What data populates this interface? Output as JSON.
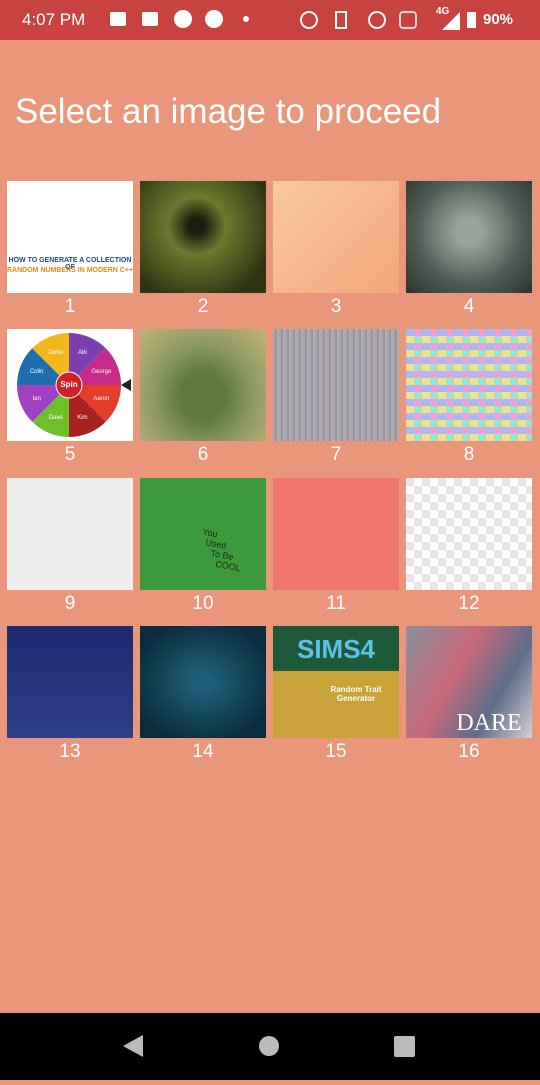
{
  "status_bar": {
    "time": "4:07 PM",
    "network": "4G",
    "battery": "90%"
  },
  "header": {
    "title": "Select an image to proceed"
  },
  "images": [
    {
      "label": "1",
      "captions": [
        "HOW TO GENERATE A COLLECTION OF",
        "RANDOM NUMBERS IN MODERN C++"
      ]
    },
    {
      "label": "2"
    },
    {
      "label": "3"
    },
    {
      "label": "4"
    },
    {
      "label": "5",
      "center": "Spin",
      "segments": [
        "Abi",
        "George",
        "Aaron",
        "Kim",
        "Dave",
        "Ian",
        "Colin",
        "Jaime"
      ]
    },
    {
      "label": "6"
    },
    {
      "label": "7"
    },
    {
      "label": "8"
    },
    {
      "label": "9"
    },
    {
      "label": "10",
      "captions": [
        "You",
        "Used",
        "To Be",
        "COOL"
      ]
    },
    {
      "label": "11"
    },
    {
      "label": "12"
    },
    {
      "label": "13"
    },
    {
      "label": "14"
    },
    {
      "label": "15",
      "captions": [
        "SIMS4",
        "Random Trait",
        "Generator"
      ]
    },
    {
      "label": "16",
      "captions": [
        "DARE"
      ]
    }
  ]
}
